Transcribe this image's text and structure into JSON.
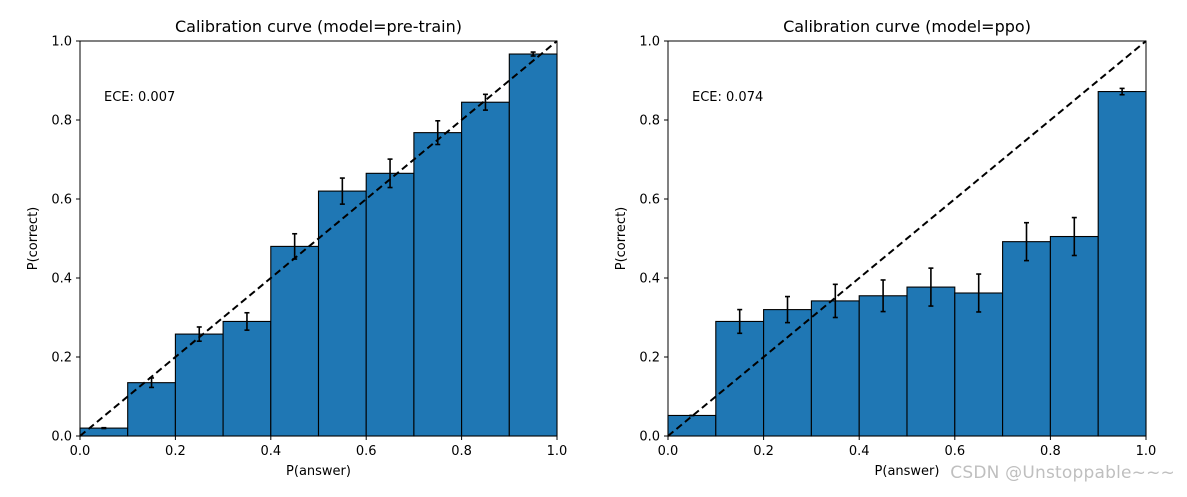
{
  "watermark": "CSDN @Unstoppable~~~",
  "style": {
    "bar_fill": "#1f77b4",
    "bar_edge": "#000000",
    "diagonal": "#000000",
    "error_bar": "#000000"
  },
  "chart_data": [
    {
      "type": "bar",
      "title": "Calibration curve (model=pre-train)",
      "xlabel": "P(answer)",
      "ylabel": "P(correct)",
      "annotation": "ECE: 0.007",
      "xlim": [
        0.0,
        1.0
      ],
      "ylim": [
        0.0,
        1.0
      ],
      "xticks": [
        "0.0",
        "0.2",
        "0.4",
        "0.6",
        "0.8",
        "1.0"
      ],
      "yticks": [
        "0.0",
        "0.2",
        "0.4",
        "0.6",
        "0.8",
        "1.0"
      ],
      "bin_edges": [
        0.0,
        0.1,
        0.2,
        0.3,
        0.4,
        0.5,
        0.6,
        0.7,
        0.8,
        0.9,
        1.0
      ],
      "values": [
        0.02,
        0.135,
        0.258,
        0.29,
        0.48,
        0.62,
        0.665,
        0.768,
        0.845,
        0.967
      ],
      "errors": [
        0.001,
        0.012,
        0.018,
        0.022,
        0.032,
        0.033,
        0.036,
        0.03,
        0.02,
        0.005
      ],
      "diagonal": true
    },
    {
      "type": "bar",
      "title": "Calibration curve (model=ppo)",
      "xlabel": "P(answer)",
      "ylabel": "P(correct)",
      "annotation": "ECE: 0.074",
      "xlim": [
        0.0,
        1.0
      ],
      "ylim": [
        0.0,
        1.0
      ],
      "xticks": [
        "0.0",
        "0.2",
        "0.4",
        "0.6",
        "0.8",
        "1.0"
      ],
      "yticks": [
        "0.0",
        "0.2",
        "0.4",
        "0.6",
        "0.8",
        "1.0"
      ],
      "bin_edges": [
        0.0,
        0.1,
        0.2,
        0.3,
        0.4,
        0.5,
        0.6,
        0.7,
        0.8,
        0.9,
        1.0
      ],
      "values": [
        0.052,
        0.29,
        0.32,
        0.342,
        0.355,
        0.377,
        0.362,
        0.492,
        0.505,
        0.872
      ],
      "errors": [
        0.0,
        0.03,
        0.033,
        0.042,
        0.04,
        0.048,
        0.048,
        0.048,
        0.048,
        0.008
      ],
      "diagonal": true
    }
  ]
}
